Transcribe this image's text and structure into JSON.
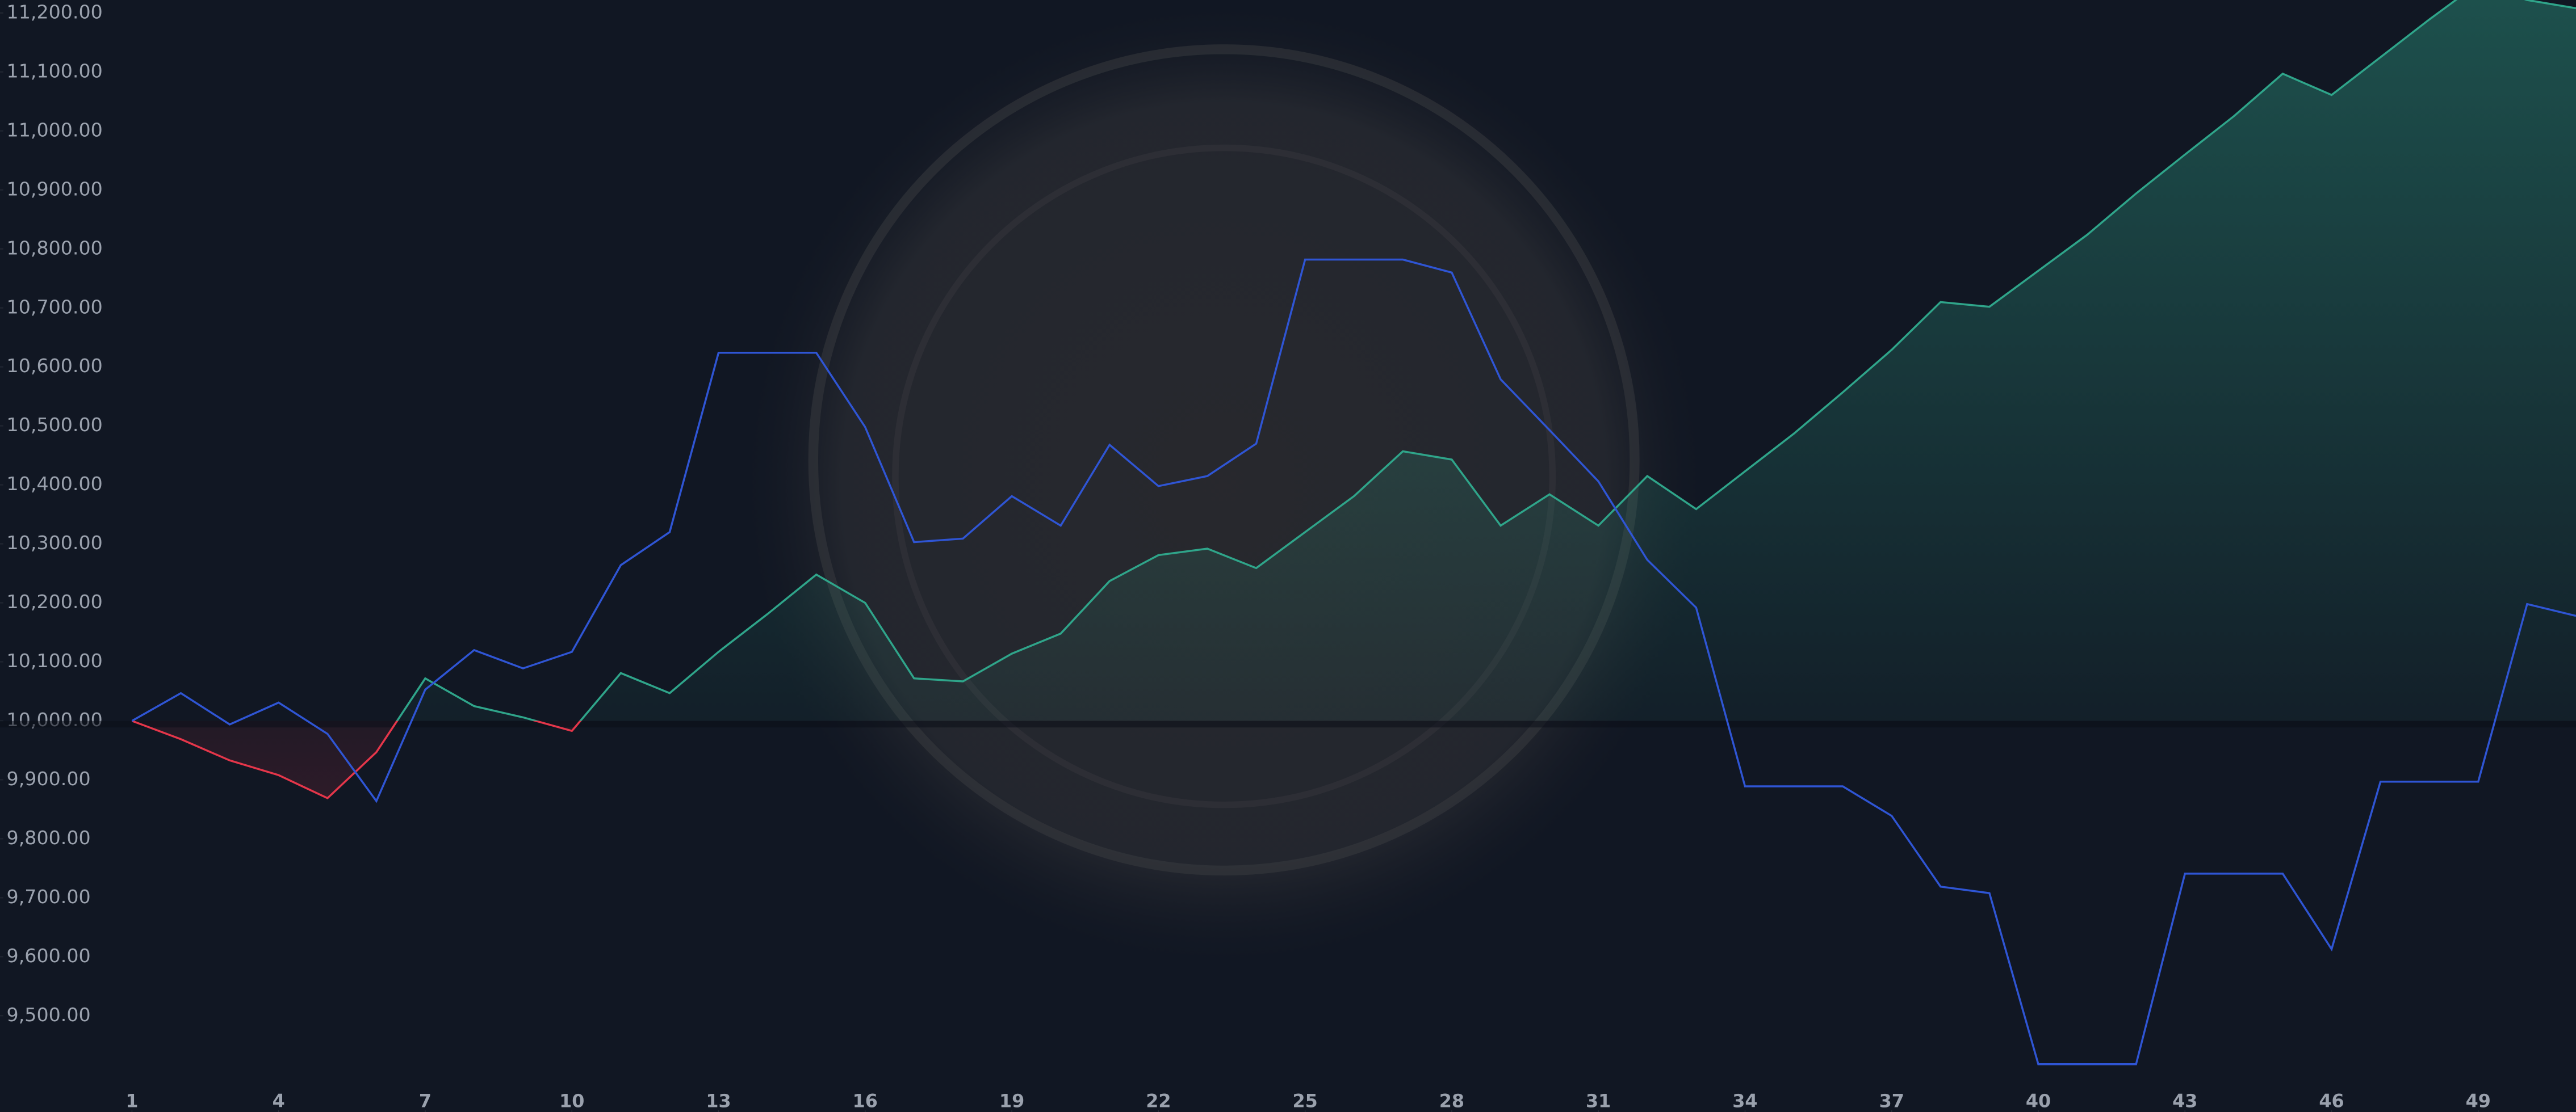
{
  "chart_data": {
    "type": "line",
    "x": [
      1,
      2,
      3,
      4,
      5,
      6,
      7,
      8,
      9,
      10,
      11,
      12,
      13,
      14,
      15,
      16,
      17,
      18,
      19,
      20,
      21,
      22,
      23,
      24,
      25,
      26,
      27,
      28,
      29,
      30,
      31,
      32,
      33,
      34,
      35,
      36,
      37,
      38,
      39,
      40,
      41,
      42,
      43,
      44,
      45,
      46,
      47,
      48,
      49,
      50,
      51
    ],
    "series": [
      {
        "color": "#2fa58a",
        "negative_color": "#e5364a",
        "values": [
          10000,
          9969,
          9933,
          9908,
          9869,
          9947,
          10072,
          10025,
          10006,
          9983,
          10081,
          10047,
          10117,
          10181,
          10248,
          10200,
          10072,
          10067,
          10114,
          10148,
          10237,
          10281,
          10292,
          10259,
          10320,
          10381,
          10457,
          10443,
          10331,
          10384,
          10331,
          10415,
          10359,
          10423,
          10487,
          10557,
          10629,
          10710,
          10702,
          10763,
          10824,
          10894,
          10960,
          11025,
          11097,
          11061,
          11125,
          11189,
          11250,
          11222,
          11208
        ]
      },
      {
        "color": "#2f55d4",
        "values": [
          10000,
          10047,
          9994,
          10031,
          9978,
          9864,
          10053,
          10120,
          10089,
          10117,
          10264,
          10320,
          10624,
          10624,
          10624,
          10498,
          10303,
          10309,
          10381,
          10331,
          10468,
          10398,
          10415,
          10470,
          10782,
          10782,
          10782,
          10760,
          10579,
          10493,
          10406,
          10273,
          10192,
          9889,
          9889,
          9889,
          9839,
          9719,
          9708,
          9418,
          9418,
          9418,
          9741,
          9741,
          9741,
          9613,
          9897,
          9897,
          9897,
          10198,
          10178
        ]
      }
    ],
    "baseline": 10000,
    "xlim": [
      -1.7,
      51
    ],
    "xticks": [
      1,
      4,
      7,
      10,
      13,
      16,
      19,
      22,
      25,
      28,
      31,
      34,
      37,
      40,
      43,
      46,
      49
    ],
    "ylim": [
      9337,
      11222
    ],
    "yticks": [
      {
        "value": 9500,
        "label": "9,500.00"
      },
      {
        "value": 9600,
        "label": "9,600.00"
      },
      {
        "value": 9700,
        "label": "9,700.00"
      },
      {
        "value": 9800,
        "label": "9,800.00"
      },
      {
        "value": 9900,
        "label": "9,900.00"
      },
      {
        "value": 10000,
        "label": "10,000.00"
      },
      {
        "value": 10100,
        "label": "10,100.00"
      },
      {
        "value": 10200,
        "label": "10,200.00"
      },
      {
        "value": 10300,
        "label": "10,300.00"
      },
      {
        "value": 10400,
        "label": "10,400.00"
      },
      {
        "value": 10500,
        "label": "10,500.00"
      },
      {
        "value": 10600,
        "label": "10,600.00"
      },
      {
        "value": 10700,
        "label": "10,700.00"
      },
      {
        "value": 10800,
        "label": "10,800.00"
      },
      {
        "value": 10900,
        "label": "10,900.00"
      },
      {
        "value": 11000,
        "label": "11,000.00"
      },
      {
        "value": 11100,
        "label": "11,100.00"
      },
      {
        "value": 11200,
        "label": "11,200.00"
      }
    ]
  }
}
